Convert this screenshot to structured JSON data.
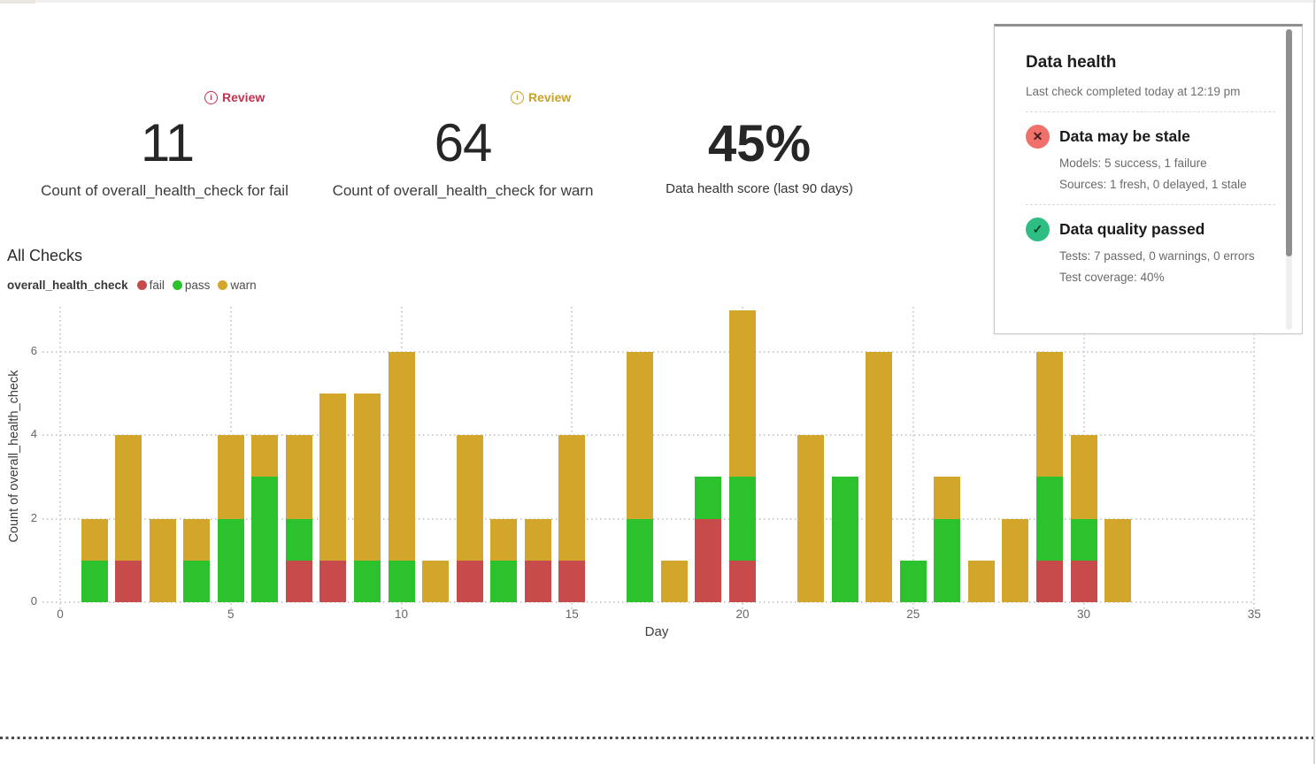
{
  "kpis": [
    {
      "review": "Review",
      "review_color": "#c2314e",
      "value": "11",
      "label": "Count of overall_health_check for fail"
    },
    {
      "review": "Review",
      "review_color": "#c9a227",
      "value": "64",
      "label": "Count of overall_health_check for warn"
    },
    {
      "value": "45%",
      "label": "Data health score (last 90 days)"
    }
  ],
  "health_panel": {
    "title": "Data health",
    "last_check": "Last check completed today at 12:19 pm",
    "sections": [
      {
        "status": "fail",
        "status_color": "#f0716b",
        "title": "Data may be stale",
        "lines": [
          "Models: 5 success, 1 failure",
          "Sources: 1 fresh, 0 delayed, 1 stale"
        ]
      },
      {
        "status": "pass",
        "status_color": "#2ebe84",
        "title": "Data quality passed",
        "lines": [
          "Tests: 7 passed, 0 warnings, 0 errors",
          "Test coverage: 40%"
        ]
      }
    ]
  },
  "chart_data": {
    "type": "bar",
    "stacked": true,
    "title": "All Checks",
    "legend_title": "overall_health_check",
    "xlabel": "Day",
    "ylabel": "Count of overall_health_check",
    "xlim": [
      0,
      35
    ],
    "ylim": [
      0,
      7
    ],
    "x_ticks": [
      0,
      5,
      10,
      15,
      20,
      25,
      30,
      35
    ],
    "y_ticks": [
      0,
      2,
      4,
      6
    ],
    "grid": true,
    "legend_position": "top-left",
    "x": [
      1,
      2,
      3,
      4,
      5,
      6,
      7,
      8,
      9,
      10,
      11,
      12,
      13,
      14,
      15,
      16,
      17,
      18,
      19,
      20,
      21,
      22,
      23,
      24,
      25,
      26,
      27,
      28,
      29,
      30,
      31
    ],
    "series": [
      {
        "name": "fail",
        "color": "#c84b4b",
        "values": [
          0,
          1,
          0,
          0,
          0,
          0,
          1,
          1,
          0,
          0,
          0,
          1,
          0,
          1,
          1,
          0,
          0,
          0,
          2,
          1,
          0,
          0,
          0,
          0,
          0,
          0,
          0,
          0,
          1,
          1,
          0
        ]
      },
      {
        "name": "pass",
        "color": "#2bc22d",
        "values": [
          1,
          0,
          0,
          1,
          2,
          3,
          1,
          0,
          1,
          1,
          0,
          0,
          1,
          0,
          0,
          0,
          2,
          0,
          1,
          2,
          0,
          0,
          3,
          0,
          1,
          2,
          0,
          0,
          2,
          1,
          0
        ]
      },
      {
        "name": "warn",
        "color": "#d2a62b",
        "values": [
          1,
          3,
          2,
          1,
          2,
          1,
          2,
          4,
          4,
          5,
          1,
          3,
          1,
          1,
          3,
          0,
          4,
          1,
          0,
          4,
          0,
          4,
          0,
          6,
          0,
          1,
          1,
          2,
          3,
          2,
          2
        ]
      }
    ]
  }
}
